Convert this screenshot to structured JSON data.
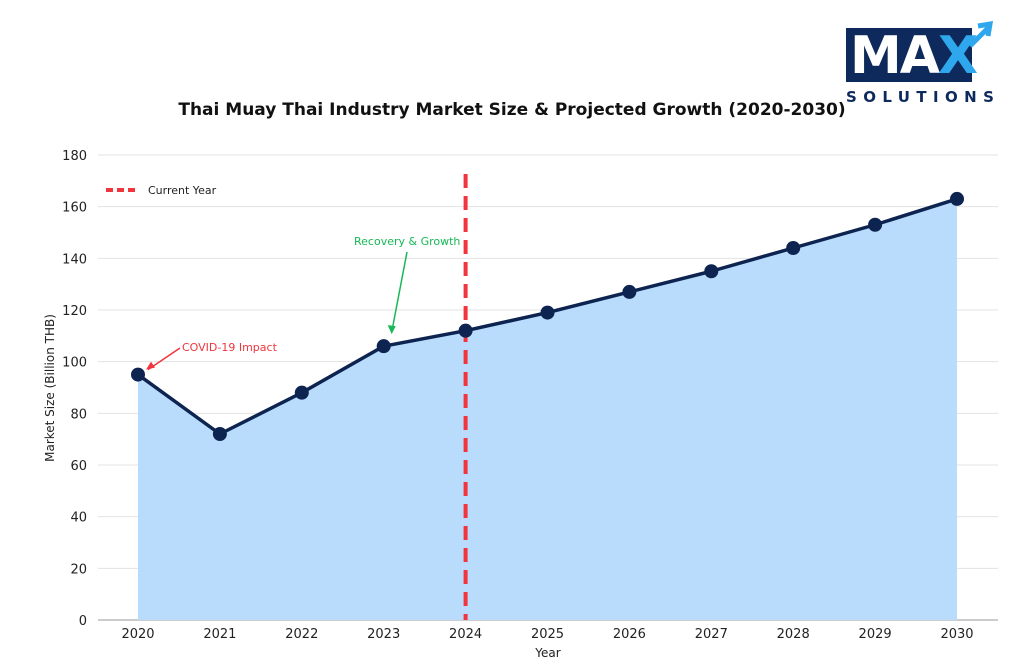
{
  "logo": {
    "main": "MA",
    "accent": "X",
    "sub": "SOLUTIONS"
  },
  "chart_data": {
    "type": "line",
    "title": "Thai Muay Thai Industry Market Size & Projected Growth (2020-2030)",
    "xlabel": "Year",
    "ylabel": "Market Size (Billion THB)",
    "x": [
      "2020",
      "2021",
      "2022",
      "2023",
      "2024",
      "2025",
      "2026",
      "2027",
      "2028",
      "2029",
      "2030"
    ],
    "series": [
      {
        "name": "Market Size",
        "values": [
          95,
          72,
          88,
          106,
          112,
          119,
          127,
          135,
          144,
          153,
          163
        ],
        "color": "#0d2350",
        "fill": "#b9dcfd",
        "area": true
      }
    ],
    "ylim": [
      0,
      180
    ],
    "yticks": [
      0,
      20,
      40,
      60,
      80,
      100,
      120,
      140,
      160,
      180
    ],
    "grid": true,
    "legend": {
      "placement": "top-left",
      "entries": [
        {
          "label": "Current Year",
          "style": "dashed",
          "color": "#f2343d"
        }
      ]
    },
    "reference_line": {
      "x": "2024",
      "label": "Current Year",
      "color": "#f2343d"
    },
    "annotations": [
      {
        "text": "COVID-19 Impact",
        "x": "2020",
        "y": 95,
        "color": "#f2343d"
      },
      {
        "text": "Recovery & Growth",
        "x": "2023",
        "y": 106,
        "color": "#17b856"
      }
    ]
  }
}
